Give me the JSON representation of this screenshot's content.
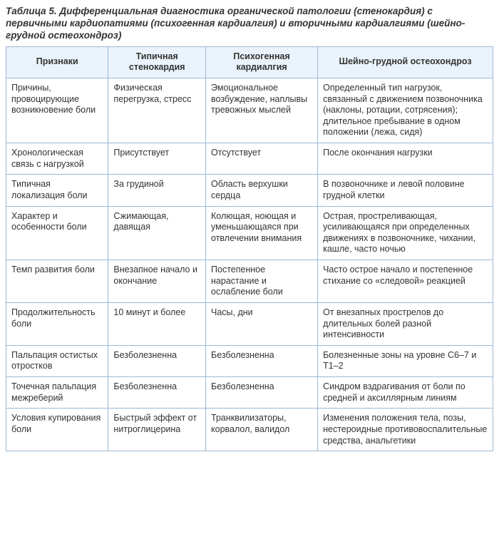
{
  "caption": "Таблица 5. Дифференциальная диагностика органической патологии (стенокардия) с первичными кардиопатиями (психогенная кардиалгия) и вторичными кардиалгиями (шейно-грудной остеохондроз)",
  "columns": [
    "Признаки",
    "Типичная стенокардия",
    "Психогенная кардиалгия",
    "Шейно-грудной остеохондроз"
  ],
  "rows": [
    {
      "c0": "Причины, провоцирующие возникновение боли",
      "c1": "Физическая перегрузка, стресс",
      "c2": "Эмоциональное возбуждение, наплывы тревожных мыслей",
      "c3": "Определенный тип нагрузок, связанный с движением позвоночника (наклоны, ротации, сотрясения); длительное пребывание в одном положении (лежа, сидя)"
    },
    {
      "c0": "Хронологическая связь с нагрузкой",
      "c1": "Присутствует",
      "c2": "Отсутствует",
      "c3": "После окончания нагрузки"
    },
    {
      "c0": "Типичная локализация боли",
      "c1": "За грудиной",
      "c2": "Область верхушки сердца",
      "c3": "В позвоночнике и левой половине грудной клетки"
    },
    {
      "c0": "Характер и особенности боли",
      "c1": "Сжимающая, давящая",
      "c2": "Колющая, ноющая и уменьшающаяся при отвлечении внимания",
      "c3": "Острая, простреливающая, усиливающаяся при определенных движениях в позвоночнике, чихании, кашле, часто ночью"
    },
    {
      "c0": "Темп развития боли",
      "c1": "Внезапное начало и окончание",
      "c2": "Постепенное нарастание и ослабление боли",
      "c3": "Часто острое начало и постепенное стихание со «следовой» реакцией"
    },
    {
      "c0": "Продолжительность боли",
      "c1": "10 минут и более",
      "c2": "Часы, дни",
      "c3": "От внезапных прострелов до длительных болей разной интенсивности"
    },
    {
      "c0": "Пальпация остистых отростков",
      "c1": "Безболезненна",
      "c2": "Безболезненна",
      "c3": "Болезненные зоны на уровне С6–7 и Т1–2"
    },
    {
      "c0": "Точечная пальпация межреберий",
      "c1": "Безболезненна",
      "c2": "Безболезненна",
      "c3": "Синдром вздрагивания от боли по средней и аксиллярным линиям"
    },
    {
      "c0": "Условия купирования боли",
      "c1": "Быстрый эффект от нитроглицерина",
      "c2": "Транквилизаторы, корвалол, валидол",
      "c3": "Изменения положения тела, позы, нестероидные противовоспалительные средства, анальгетики"
    }
  ]
}
